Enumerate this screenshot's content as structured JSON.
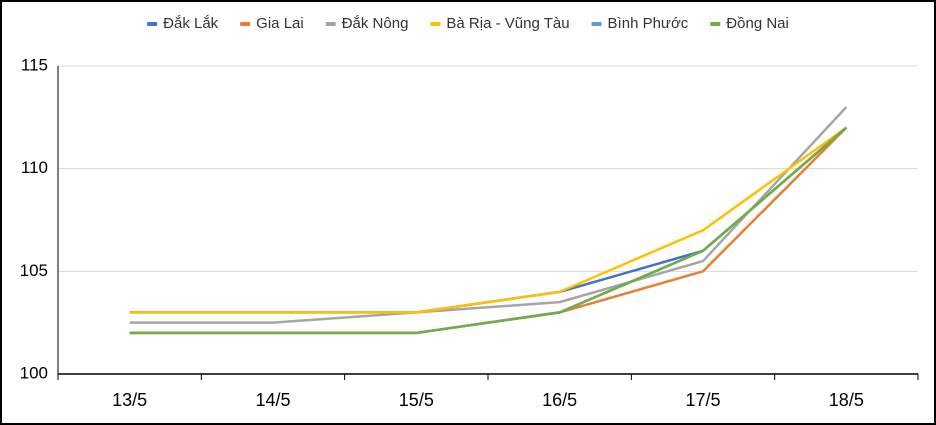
{
  "chart_data": {
    "type": "line",
    "categories": [
      "13/5",
      "14/5",
      "15/5",
      "16/5",
      "17/5",
      "18/5"
    ],
    "series": [
      {
        "name": "Đắk Lắk",
        "color": "#4472c4",
        "values": [
          103,
          103,
          103,
          104,
          106,
          112
        ]
      },
      {
        "name": "Gia Lai",
        "color": "#ed7d31",
        "values": [
          102,
          102,
          102,
          103,
          105,
          112
        ]
      },
      {
        "name": "Đắk Nông",
        "color": "#a5a5a5",
        "values": [
          102.5,
          102.5,
          103,
          103.5,
          105.5,
          113
        ]
      },
      {
        "name": "Bà Rịa - Vũng Tàu",
        "color": "#ffc000",
        "values": [
          103,
          103,
          103,
          104,
          107,
          112
        ]
      },
      {
        "name": "Bình Phước",
        "color": "#5b9bd5",
        "values": [
          102,
          102,
          102,
          103,
          106,
          112
        ]
      },
      {
        "name": "Đồng Nai",
        "color": "#70ad47",
        "values": [
          102,
          102,
          102,
          103,
          106,
          112
        ]
      }
    ],
    "ylim": [
      100,
      115
    ],
    "yticks": [
      100,
      105,
      110,
      115
    ],
    "grid": true,
    "legend": "top"
  }
}
